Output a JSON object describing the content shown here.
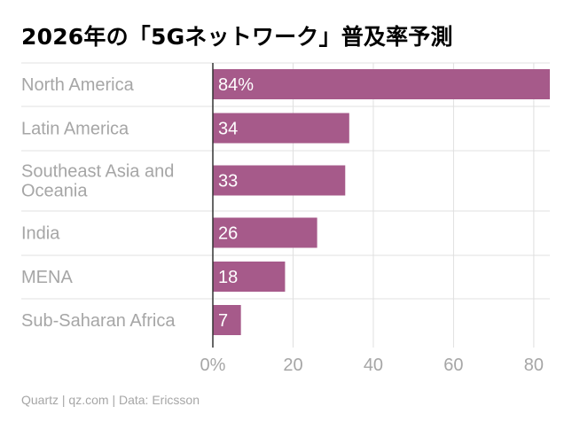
{
  "title": "2026年の「5Gネットワーク」普及率予測",
  "footer": "Quartz | qz.com | Data: Ericsson",
  "colors": {
    "bar": "#a65a8a",
    "grid": "#e0e0e0",
    "label": "#a6a6a6",
    "title": "#000000"
  },
  "chart_data": {
    "type": "bar",
    "orientation": "horizontal",
    "categories": [
      [
        "North America"
      ],
      [
        "Latin America"
      ],
      [
        "Southeast Asia and",
        "Oceania"
      ],
      [
        "India"
      ],
      [
        "MENA"
      ],
      [
        "Sub-Saharan Africa"
      ]
    ],
    "values": [
      84,
      34,
      33,
      26,
      18,
      7
    ],
    "data_labels": [
      "84%",
      "34",
      "33",
      "26",
      "18",
      "7"
    ],
    "xticks": [
      "0%",
      "20",
      "40",
      "60",
      "80"
    ],
    "xtick_values": [
      0,
      20,
      40,
      60,
      80
    ],
    "xlim": [
      0,
      84
    ],
    "grid": true
  }
}
